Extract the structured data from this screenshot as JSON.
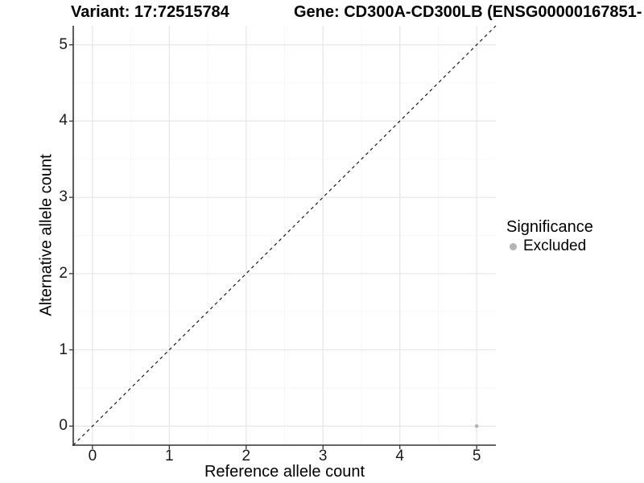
{
  "header": {
    "variant_title": "Variant: 17:72515784",
    "gene_title": "Gene: CD300A-CD300LB (ENSG00000167851-"
  },
  "chart_data": {
    "type": "scatter",
    "xlabel": "Reference allele count",
    "ylabel": "Alternative allele count",
    "xlim": [
      -0.25,
      5.25
    ],
    "ylim": [
      -0.25,
      5.25
    ],
    "x_ticks": [
      0,
      1,
      2,
      3,
      4,
      5
    ],
    "y_ticks": [
      0,
      1,
      2,
      3,
      4,
      5
    ],
    "x_minor_ticks": [
      0.5,
      1.5,
      2.5,
      3.5,
      4.5
    ],
    "y_minor_ticks": [
      0.5,
      1.5,
      2.5,
      3.5,
      4.5
    ],
    "grid": true,
    "identity_line": {
      "style": "dashed",
      "x1": -0.25,
      "y1": -0.25,
      "x2": 5.25,
      "y2": 5.25,
      "color": "#1a1a1a"
    },
    "series": [
      {
        "name": "Excluded",
        "color": "#b3b3b3",
        "points": [
          {
            "x": 5,
            "y": 0
          }
        ]
      }
    ],
    "legend": {
      "title": "Significance",
      "position": "right",
      "entries": [
        {
          "label": "Excluded",
          "color": "#b3b3b3"
        }
      ]
    },
    "colors": {
      "major_grid": "#e8e8e8",
      "minor_grid": "#f4f4f4",
      "axis": "#333333"
    }
  }
}
